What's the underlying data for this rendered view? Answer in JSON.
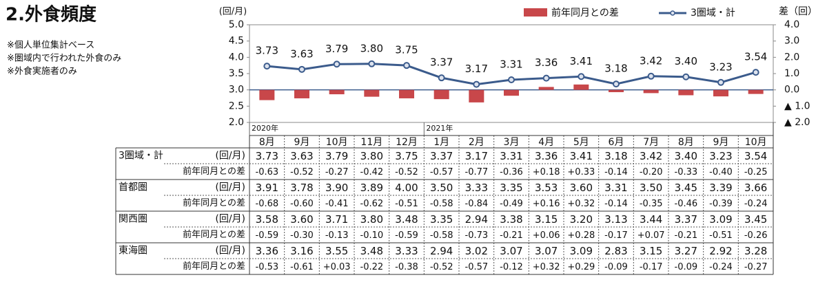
{
  "title": "2.外食頻度",
  "notes": [
    "※個人単位集計ベース",
    "※圏域内で行われた外食のみ",
    "※外食実施者のみ"
  ],
  "chart_data": {
    "type": "bar_line",
    "y_label": "(回/月)",
    "y2_label": "差（回）",
    "categories": [
      "8月",
      "9月",
      "10月",
      "11月",
      "12月",
      "1月",
      "2月",
      "3月",
      "4月",
      "5月",
      "6月",
      "7月",
      "8月",
      "9月",
      "10月"
    ],
    "years": [
      "2020年",
      null,
      null,
      null,
      null,
      "2021年",
      null,
      null,
      null,
      null,
      null,
      null,
      null,
      null,
      null
    ],
    "legend": "top-right",
    "ylim": [
      2.0,
      5.0
    ],
    "yticks": [
      {
        "value": 2.0,
        "label": "2.0"
      },
      {
        "value": 2.5,
        "label": "2.5"
      },
      {
        "value": 3.0,
        "label": "3.0"
      },
      {
        "value": 3.5,
        "label": "3.5"
      },
      {
        "value": 4.0,
        "label": "4.0"
      },
      {
        "value": 4.5,
        "label": "4.5"
      },
      {
        "value": 5.0,
        "label": "5.0"
      }
    ],
    "y2lim": [
      -2.0,
      4.0
    ],
    "y2ticks": [
      {
        "value": -2.0,
        "label": "▲ 2.0"
      },
      {
        "value": -1.0,
        "label": "▲ 1.0"
      },
      {
        "value": 0,
        "label": "0.0"
      },
      {
        "value": 1.0,
        "label": "1.0"
      },
      {
        "value": 2.0,
        "label": "2.0"
      },
      {
        "value": 3.0,
        "label": "3.0"
      },
      {
        "value": 4.0,
        "label": "4.0"
      }
    ],
    "series": [
      {
        "name": "前年同月との差",
        "type": "bar",
        "axis": "y2",
        "color": "#c8474a",
        "values": [
          -0.63,
          -0.52,
          -0.27,
          -0.42,
          -0.52,
          -0.57,
          -0.77,
          -0.36,
          0.18,
          0.33,
          -0.14,
          -0.2,
          -0.33,
          -0.4,
          -0.25
        ],
        "value_labels": [
          "-0.63",
          "-0.52",
          "-0.27",
          "-0.42",
          "-0.52",
          "-0.57",
          "-0.77",
          "-0.36",
          "+0.18",
          "+0.33",
          "-0.14",
          "-0.20",
          "-0.33",
          "-0.40",
          "-0.25"
        ]
      },
      {
        "name": "3圏域・計",
        "type": "line",
        "color": "#3b5b8c",
        "values": [
          3.73,
          3.63,
          3.79,
          3.8,
          3.75,
          3.37,
          3.17,
          3.31,
          3.36,
          3.41,
          3.18,
          3.42,
          3.4,
          3.23,
          3.54
        ],
        "value_labels": [
          "3.73",
          "3.63",
          "3.79",
          "3.80",
          "3.75",
          "3.37",
          "3.17",
          "3.31",
          "3.36",
          "3.41",
          "3.18",
          "3.42",
          "3.40",
          "3.23",
          "3.54"
        ]
      }
    ]
  },
  "table": {
    "regions": [
      {
        "name": "首都圏",
        "values": [
          "3.91",
          "3.78",
          "3.90",
          "3.89",
          "4.00",
          "3.50",
          "3.33",
          "3.35",
          "3.53",
          "3.60",
          "3.31",
          "3.50",
          "3.45",
          "3.39",
          "3.66"
        ],
        "diffs": [
          "-0.68",
          "-0.60",
          "-0.41",
          "-0.62",
          "-0.51",
          "-0.58",
          "-0.84",
          "-0.49",
          "+0.16",
          "+0.32",
          "-0.14",
          "-0.35",
          "-0.46",
          "-0.39",
          "-0.24"
        ]
      },
      {
        "name": "関西圏",
        "values": [
          "3.58",
          "3.60",
          "3.71",
          "3.80",
          "3.48",
          "3.35",
          "2.94",
          "3.38",
          "3.15",
          "3.20",
          "3.13",
          "3.44",
          "3.37",
          "3.09",
          "3.45"
        ],
        "diffs": [
          "-0.59",
          "-0.30",
          "-0.13",
          "-0.10",
          "-0.59",
          "-0.58",
          "-0.73",
          "-0.21",
          "+0.06",
          "+0.28",
          "-0.17",
          "+0.07",
          "-0.21",
          "-0.51",
          "-0.26"
        ]
      },
      {
        "name": "東海圏",
        "values": [
          "3.36",
          "3.16",
          "3.55",
          "3.48",
          "3.33",
          "2.94",
          "3.02",
          "3.07",
          "3.07",
          "3.09",
          "2.83",
          "3.15",
          "3.27",
          "2.92",
          "3.28"
        ],
        "diffs": [
          "-0.53",
          "-0.61",
          "+0.03",
          "-0.22",
          "-0.38",
          "-0.52",
          "-0.57",
          "-0.12",
          "+0.32",
          "+0.29",
          "-0.09",
          "-0.17",
          "-0.09",
          "-0.24",
          "-0.27"
        ]
      }
    ]
  }
}
